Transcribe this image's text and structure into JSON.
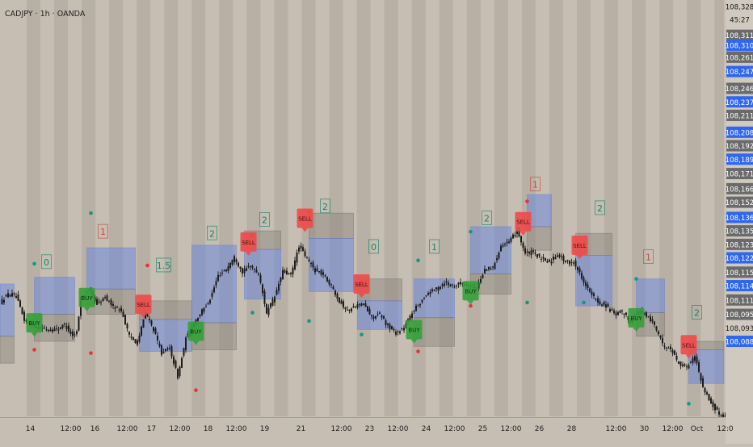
{
  "header": {
    "title": "CADJPY · 1h · OANDA"
  },
  "colors": {
    "background": "#c6beb2",
    "band": "#b4aca1",
    "candle": "#1b1b1b",
    "tp_box": "#6d88dd",
    "sl_box": "#87827b",
    "buy": "#34a13a",
    "sell": "#ee4a4a",
    "dot_teal": "#109a80",
    "dot_red": "#e8313a",
    "count_green": "#16856a",
    "count_red": "#c44848",
    "axis_bg": "#d0c9bf",
    "price_tag_blue": "#2f67f0",
    "price_tag_gray": "#6a6a6a"
  },
  "chart_data": {
    "type": "candlestick",
    "symbol": "CADJPY",
    "timeframe": "1h",
    "broker": "OANDA",
    "ylim": [
      108.085,
      108.33
    ],
    "price_axis_labels": [
      {
        "text": "108,328",
        "v": 108.328,
        "style": "plain"
      },
      {
        "text": "45:27",
        "v": 108.3205,
        "style": "plain"
      },
      {
        "text": "108,311",
        "v": 108.311,
        "style": "gray"
      },
      {
        "text": "108,310",
        "v": 108.305,
        "style": "blue"
      },
      {
        "text": "108,261",
        "v": 108.298,
        "style": "gray"
      },
      {
        "text": "108,247",
        "v": 108.2895,
        "style": "blue"
      },
      {
        "text": "108,246",
        "v": 108.2795,
        "style": "gray"
      },
      {
        "text": "108,237",
        "v": 108.2715,
        "style": "blue"
      },
      {
        "text": "108,211",
        "v": 108.2635,
        "style": "gray"
      },
      {
        "text": "108,208",
        "v": 108.2535,
        "style": "blue"
      },
      {
        "text": "108,192",
        "v": 108.2455,
        "style": "gray"
      },
      {
        "text": "108,189",
        "v": 108.2375,
        "style": "blue"
      },
      {
        "text": "108,171",
        "v": 108.229,
        "style": "gray"
      },
      {
        "text": "108,166",
        "v": 108.22,
        "style": "gray"
      },
      {
        "text": "108,152",
        "v": 108.212,
        "style": "gray"
      },
      {
        "text": "108,136",
        "v": 108.203,
        "style": "blue"
      },
      {
        "text": "108,135",
        "v": 108.195,
        "style": "gray"
      },
      {
        "text": "108,123",
        "v": 108.187,
        "style": "gray"
      },
      {
        "text": "108,122",
        "v": 108.179,
        "style": "blue"
      },
      {
        "text": "108,115",
        "v": 108.1705,
        "style": "gray"
      },
      {
        "text": "108,114",
        "v": 108.1625,
        "style": "blue"
      },
      {
        "text": "108,111",
        "v": 108.154,
        "style": "gray"
      },
      {
        "text": "108,095",
        "v": 108.1455,
        "style": "gray"
      },
      {
        "text": "108,093",
        "v": 108.1375,
        "style": "plain"
      },
      {
        "text": "108,088",
        "v": 108.1295,
        "style": "blue"
      }
    ],
    "time_axis_labels": [
      {
        "text": "14",
        "i": 7
      },
      {
        "text": "12:00",
        "i": 17
      },
      {
        "text": "16",
        "i": 23
      },
      {
        "text": "12:00",
        "i": 31
      },
      {
        "text": "17",
        "i": 37
      },
      {
        "text": "12:00",
        "i": 44
      },
      {
        "text": "18",
        "i": 51
      },
      {
        "text": "12:00",
        "i": 58
      },
      {
        "text": "19",
        "i": 65
      },
      {
        "text": "21",
        "i": 74
      },
      {
        "text": "12:00",
        "i": 84
      },
      {
        "text": "23",
        "i": 91
      },
      {
        "text": "12:00",
        "i": 98
      },
      {
        "text": "24",
        "i": 105
      },
      {
        "text": "12:00",
        "i": 112
      },
      {
        "text": "25",
        "i": 119
      },
      {
        "text": "12:00",
        "i": 126
      },
      {
        "text": "26",
        "i": 133
      },
      {
        "text": "28",
        "i": 141
      },
      {
        "text": "12:00",
        "i": 152
      },
      {
        "text": "30",
        "i": 159
      },
      {
        "text": "12:00",
        "i": 166
      },
      {
        "text": "Oct",
        "i": 172
      },
      {
        "text": "12:0",
        "i": 179
      }
    ],
    "waypoints": [
      [
        0,
        108.1525
      ],
      [
        2,
        108.1575
      ],
      [
        4,
        108.156
      ],
      [
        6,
        108.142
      ],
      [
        8,
        108.139
      ],
      [
        10,
        108.1375
      ],
      [
        12,
        108.1365
      ],
      [
        14,
        108.1365
      ],
      [
        16,
        108.1395
      ],
      [
        18,
        108.1325
      ],
      [
        19,
        108.135
      ],
      [
        20,
        108.1555
      ],
      [
        22,
        108.16
      ],
      [
        24,
        108.1515
      ],
      [
        26,
        108.1555
      ],
      [
        28,
        108.1505
      ],
      [
        30,
        108.148
      ],
      [
        32,
        108.1325
      ],
      [
        34,
        108.1285
      ],
      [
        36,
        108.1465
      ],
      [
        38,
        108.1365
      ],
      [
        40,
        108.1225
      ],
      [
        42,
        108.1255
      ],
      [
        44,
        108.1085
      ],
      [
        46,
        108.131
      ],
      [
        48,
        108.1405
      ],
      [
        50,
        108.1475
      ],
      [
        52,
        108.1545
      ],
      [
        54,
        108.1685
      ],
      [
        56,
        108.1725
      ],
      [
        58,
        108.1795
      ],
      [
        60,
        108.1705
      ],
      [
        62,
        108.1745
      ],
      [
        64,
        108.1695
      ],
      [
        66,
        108.1465
      ],
      [
        68,
        108.156
      ],
      [
        70,
        108.171
      ],
      [
        72,
        108.1685
      ],
      [
        74,
        108.186
      ],
      [
        76,
        108.1785
      ],
      [
        78,
        108.1715
      ],
      [
        80,
        108.169
      ],
      [
        82,
        108.1625
      ],
      [
        84,
        108.1535
      ],
      [
        86,
        108.1475
      ],
      [
        88,
        108.1505
      ],
      [
        90,
        108.1515
      ],
      [
        92,
        108.1435
      ],
      [
        94,
        108.1455
      ],
      [
        96,
        108.1385
      ],
      [
        98,
        108.1345
      ],
      [
        100,
        108.1375
      ],
      [
        102,
        108.1465
      ],
      [
        104,
        108.1525
      ],
      [
        106,
        108.1585
      ],
      [
        108,
        108.1605
      ],
      [
        110,
        108.1645
      ],
      [
        112,
        108.1625
      ],
      [
        114,
        108.164
      ],
      [
        116,
        108.163
      ],
      [
        118,
        108.1615
      ],
      [
        120,
        108.172
      ],
      [
        122,
        108.173
      ],
      [
        124,
        108.1865
      ],
      [
        126,
        108.188
      ],
      [
        128,
        108.1955
      ],
      [
        130,
        108.1815
      ],
      [
        132,
        108.1825
      ],
      [
        134,
        108.178
      ],
      [
        136,
        108.1765
      ],
      [
        138,
        108.1815
      ],
      [
        140,
        108.1765
      ],
      [
        142,
        108.1765
      ],
      [
        144,
        108.1675
      ],
      [
        146,
        108.1585
      ],
      [
        148,
        108.1525
      ],
      [
        150,
        108.1505
      ],
      [
        152,
        108.1455
      ],
      [
        154,
        108.147
      ],
      [
        156,
        108.1415
      ],
      [
        158,
        108.1475
      ],
      [
        160,
        108.1445
      ],
      [
        162,
        108.1395
      ],
      [
        164,
        108.1275
      ],
      [
        166,
        108.1255
      ],
      [
        168,
        108.1165
      ],
      [
        170,
        108.1145
      ],
      [
        172,
        108.1205
      ],
      [
        174,
        108.1025
      ],
      [
        176,
        108.0925
      ],
      [
        178,
        108.0865
      ],
      [
        179,
        108.0855
      ]
    ],
    "zones": [
      {
        "type": "tp",
        "i1": -2,
        "i2": 3,
        "top": 108.1635,
        "bottom": 108.1325
      },
      {
        "type": "sl",
        "i1": -2,
        "i2": 3,
        "top": 108.1325,
        "bottom": 108.1165
      },
      {
        "type": "tp",
        "i1": 8,
        "i2": 18,
        "top": 108.1675,
        "bottom": 108.1455
      },
      {
        "type": "sl",
        "i1": 8,
        "i2": 18,
        "top": 108.1455,
        "bottom": 108.1295
      },
      {
        "type": "tp",
        "i1": 21,
        "i2": 33,
        "top": 108.185,
        "bottom": 108.1605
      },
      {
        "type": "sl",
        "i1": 21,
        "i2": 33,
        "top": 108.1605,
        "bottom": 108.1455
      },
      {
        "type": "sl",
        "i1": 34,
        "i2": 47,
        "top": 108.1535,
        "bottom": 108.1425
      },
      {
        "type": "tp",
        "i1": 34,
        "i2": 47,
        "top": 108.1425,
        "bottom": 108.1235
      },
      {
        "type": "tp",
        "i1": 47,
        "i2": 58,
        "top": 108.1865,
        "bottom": 108.1405
      },
      {
        "type": "sl",
        "i1": 47,
        "i2": 58,
        "top": 108.1405,
        "bottom": 108.1245
      },
      {
        "type": "sl",
        "i1": 60,
        "i2": 69,
        "top": 108.195,
        "bottom": 108.184
      },
      {
        "type": "tp",
        "i1": 60,
        "i2": 69,
        "top": 108.184,
        "bottom": 108.1545
      },
      {
        "type": "sl",
        "i1": 76,
        "i2": 87,
        "top": 108.2055,
        "bottom": 108.1905
      },
      {
        "type": "tp",
        "i1": 76,
        "i2": 87,
        "top": 108.1905,
        "bottom": 108.159
      },
      {
        "type": "sl",
        "i1": 88,
        "i2": 99,
        "top": 108.1665,
        "bottom": 108.1535
      },
      {
        "type": "tp",
        "i1": 88,
        "i2": 99,
        "top": 108.1535,
        "bottom": 108.1365
      },
      {
        "type": "tp",
        "i1": 102,
        "i2": 112,
        "top": 108.1665,
        "bottom": 108.1435
      },
      {
        "type": "sl",
        "i1": 102,
        "i2": 112,
        "top": 108.1435,
        "bottom": 108.1265
      },
      {
        "type": "tp",
        "i1": 116,
        "i2": 126,
        "top": 108.1975,
        "bottom": 108.1695
      },
      {
        "type": "sl",
        "i1": 116,
        "i2": 126,
        "top": 108.1695,
        "bottom": 108.1575
      },
      {
        "type": "tp",
        "i1": 130,
        "i2": 136,
        "top": 108.2165,
        "bottom": 108.1975
      },
      {
        "type": "sl",
        "i1": 130,
        "i2": 136,
        "top": 108.1975,
        "bottom": 108.1835
      },
      {
        "type": "sl",
        "i1": 142,
        "i2": 151,
        "top": 108.1935,
        "bottom": 108.1805
      },
      {
        "type": "tp",
        "i1": 142,
        "i2": 151,
        "top": 108.1805,
        "bottom": 108.1505
      },
      {
        "type": "tp",
        "i1": 157,
        "i2": 164,
        "top": 108.1665,
        "bottom": 108.1465
      },
      {
        "type": "sl",
        "i1": 157,
        "i2": 164,
        "top": 108.1465,
        "bottom": 108.1325
      },
      {
        "type": "sl",
        "i1": 170,
        "i2": 180,
        "top": 108.1295,
        "bottom": 108.1245
      },
      {
        "type": "tp",
        "i1": 170,
        "i2": 180,
        "top": 108.1245,
        "bottom": 108.1045
      }
    ],
    "signals": [
      {
        "type": "BUY",
        "i": 8,
        "v": 108.1395
      },
      {
        "type": "BUY",
        "i": 21,
        "v": 108.1545
      },
      {
        "type": "SELL",
        "i": 35,
        "v": 108.1505
      },
      {
        "type": "BUY",
        "i": 48,
        "v": 108.1345
      },
      {
        "type": "SELL",
        "i": 61,
        "v": 108.1875
      },
      {
        "type": "SELL",
        "i": 75,
        "v": 108.2015
      },
      {
        "type": "SELL",
        "i": 89,
        "v": 108.1625
      },
      {
        "type": "BUY",
        "i": 102,
        "v": 108.1355
      },
      {
        "type": "BUY",
        "i": 116,
        "v": 108.1585
      },
      {
        "type": "SELL",
        "i": 129,
        "v": 108.1995
      },
      {
        "type": "SELL",
        "i": 143,
        "v": 108.1855
      },
      {
        "type": "BUY",
        "i": 157,
        "v": 108.1425
      },
      {
        "type": "SELL",
        "i": 170,
        "v": 108.1265
      }
    ],
    "dots": [
      {
        "i": 8,
        "v": 108.1755,
        "c": "teal"
      },
      {
        "i": 8,
        "v": 108.1245,
        "c": "red"
      },
      {
        "i": 22,
        "v": 108.2055,
        "c": "teal"
      },
      {
        "i": 22,
        "v": 108.1225,
        "c": "red"
      },
      {
        "i": 36,
        "v": 108.1745,
        "c": "red"
      },
      {
        "i": 48,
        "v": 108.1005,
        "c": "red"
      },
      {
        "i": 62,
        "v": 108.1465,
        "c": "teal"
      },
      {
        "i": 62,
        "v": 108.1925,
        "c": "red"
      },
      {
        "i": 76,
        "v": 108.1415,
        "c": "teal"
      },
      {
        "i": 76,
        "v": 108.2065,
        "c": "red"
      },
      {
        "i": 89,
        "v": 108.1335,
        "c": "teal"
      },
      {
        "i": 89,
        "v": 108.1645,
        "c": "red"
      },
      {
        "i": 103,
        "v": 108.1775,
        "c": "teal"
      },
      {
        "i": 103,
        "v": 108.1235,
        "c": "red"
      },
      {
        "i": 116,
        "v": 108.1505,
        "c": "red"
      },
      {
        "i": 116,
        "v": 108.1945,
        "c": "teal"
      },
      {
        "i": 130,
        "v": 108.1525,
        "c": "teal"
      },
      {
        "i": 130,
        "v": 108.2125,
        "c": "red"
      },
      {
        "i": 144,
        "v": 108.1875,
        "c": "red"
      },
      {
        "i": 144,
        "v": 108.1525,
        "c": "teal"
      },
      {
        "i": 157,
        "v": 108.1665,
        "c": "teal"
      },
      {
        "i": 170,
        "v": 108.0925,
        "c": "teal"
      }
    ],
    "counts": [
      {
        "text": "0",
        "i": 11,
        "v": 108.1765,
        "c": "green"
      },
      {
        "text": "1",
        "i": 25,
        "v": 108.1945,
        "c": "red"
      },
      {
        "text": "1.5",
        "i": 40,
        "v": 108.1745,
        "c": "green"
      },
      {
        "text": "2",
        "i": 52,
        "v": 108.1935,
        "c": "green"
      },
      {
        "text": "2",
        "i": 65,
        "v": 108.2015,
        "c": "green"
      },
      {
        "text": "2",
        "i": 80,
        "v": 108.2095,
        "c": "green"
      },
      {
        "text": "0",
        "i": 92,
        "v": 108.1855,
        "c": "green"
      },
      {
        "text": "1",
        "i": 107,
        "v": 108.1855,
        "c": "green"
      },
      {
        "text": "2",
        "i": 120,
        "v": 108.2025,
        "c": "green"
      },
      {
        "text": "1",
        "i": 132,
        "v": 108.2225,
        "c": "red"
      },
      {
        "text": "2",
        "i": 148,
        "v": 108.2085,
        "c": "green"
      },
      {
        "text": "1",
        "i": 160,
        "v": 108.1795,
        "c": "red"
      },
      {
        "text": "2",
        "i": 172,
        "v": 108.1465,
        "c": "green"
      }
    ]
  }
}
